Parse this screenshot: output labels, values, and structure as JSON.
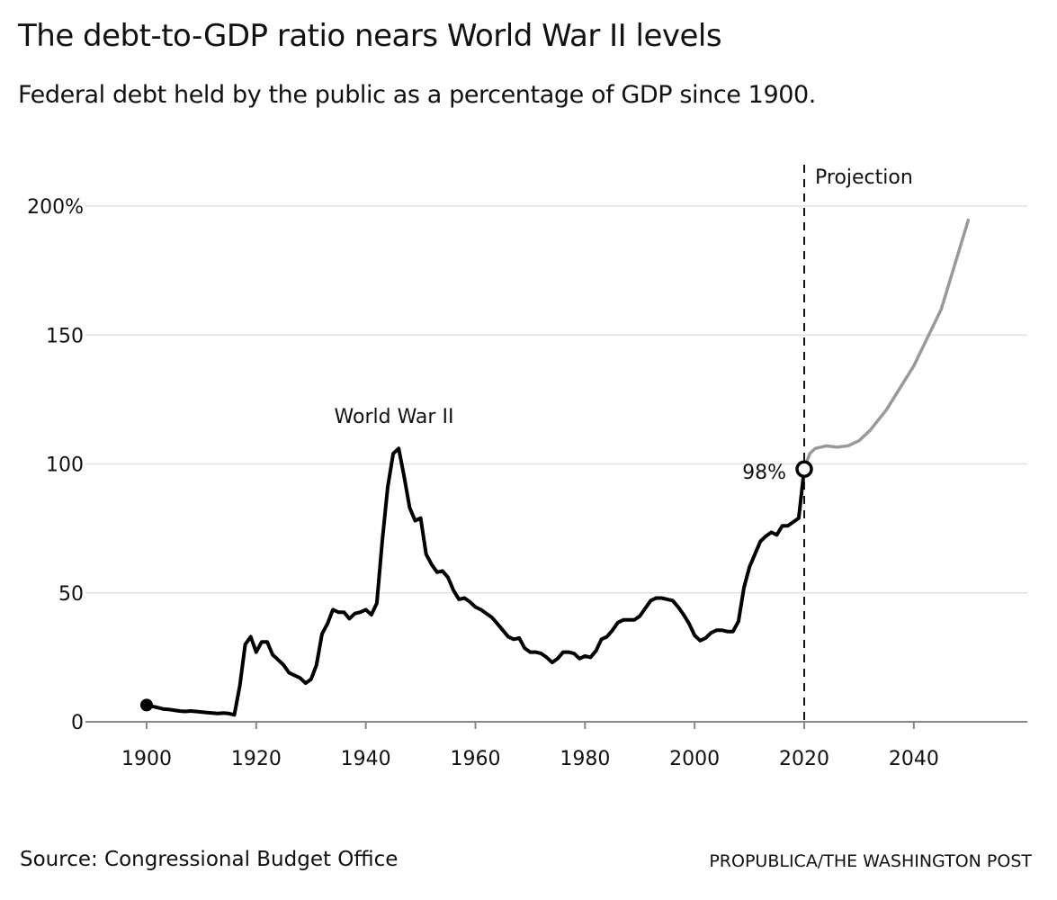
{
  "chart_data": {
    "type": "line",
    "title": "The debt-to-GDP ratio nears World War II levels",
    "subtitle": "Federal debt held by the public as a percentage of GDP since 1900.",
    "xlabel": "",
    "ylabel": "",
    "xlim": [
      1893,
      2055
    ],
    "ylim": [
      0,
      200
    ],
    "grid": true,
    "x_ticks": [
      "1900",
      "1920",
      "1940",
      "1960",
      "1980",
      "2000",
      "2020",
      "2040"
    ],
    "y_ticks": [
      "0",
      "50",
      "100",
      "150",
      "200%"
    ],
    "y_tick_values": [
      0,
      50,
      100,
      150,
      200
    ],
    "x_tick_values": [
      1900,
      1920,
      1940,
      1960,
      1980,
      2000,
      2020,
      2040
    ],
    "series": [
      {
        "role": "historical",
        "color": "#000000",
        "x": [
          1900,
          1901,
          1902,
          1903,
          1904,
          1905,
          1906,
          1907,
          1908,
          1909,
          1910,
          1911,
          1912,
          1913,
          1914,
          1915,
          1916,
          1917,
          1918,
          1919,
          1920,
          1921,
          1922,
          1923,
          1924,
          1925,
          1926,
          1927,
          1928,
          1929,
          1930,
          1931,
          1932,
          1933,
          1934,
          1935,
          1936,
          1937,
          1938,
          1939,
          1940,
          1941,
          1942,
          1943,
          1944,
          1945,
          1946,
          1947,
          1948,
          1949,
          1950,
          1951,
          1952,
          1953,
          1954,
          1955,
          1956,
          1957,
          1958,
          1959,
          1960,
          1961,
          1962,
          1963,
          1964,
          1965,
          1966,
          1967,
          1968,
          1969,
          1970,
          1971,
          1972,
          1973,
          1974,
          1975,
          1976,
          1977,
          1978,
          1979,
          1980,
          1981,
          1982,
          1983,
          1984,
          1985,
          1986,
          1987,
          1988,
          1989,
          1990,
          1991,
          1992,
          1993,
          1994,
          1995,
          1996,
          1997,
          1998,
          1999,
          2000,
          2001,
          2002,
          2003,
          2004,
          2005,
          2006,
          2007,
          2008,
          2009,
          2010,
          2011,
          2012,
          2013,
          2014,
          2015,
          2016,
          2017,
          2018,
          2019,
          2020
        ],
        "y": [
          6.5,
          6,
          5.5,
          5,
          4.8,
          4.5,
          4.2,
          4,
          4.2,
          4,
          3.8,
          3.6,
          3.4,
          3.2,
          3.4,
          3.2,
          2.7,
          14,
          30,
          33,
          27,
          31,
          31,
          26,
          24,
          22,
          19,
          18,
          17,
          15,
          16.5,
          22,
          34,
          38,
          43.5,
          42.5,
          42.5,
          40,
          42,
          42.5,
          43.5,
          41.5,
          46,
          70,
          91,
          104,
          106,
          95,
          83,
          78,
          79,
          65,
          61,
          58,
          58.5,
          56,
          51,
          47.5,
          48,
          46.5,
          44.5,
          43.5,
          42,
          40.5,
          38,
          35.5,
          33,
          32,
          32.5,
          28.5,
          27,
          27,
          26.5,
          25,
          23,
          24.5,
          27,
          27,
          26.5,
          24.5,
          25.5,
          25,
          27.5,
          32,
          33,
          35.5,
          38.5,
          39.5,
          39.5,
          39.5,
          41,
          44,
          47,
          48,
          48,
          47.5,
          47,
          44.5,
          41.5,
          38,
          33.5,
          31.5,
          32.5,
          34.5,
          35.5,
          35.5,
          35,
          35,
          39,
          52,
          60,
          65,
          70,
          72,
          73.5,
          72.5,
          76,
          76,
          77.5,
          79,
          98
        ]
      },
      {
        "role": "projection",
        "color": "#999999",
        "x": [
          2020,
          2021,
          2022,
          2024,
          2026,
          2028,
          2030,
          2032,
          2035,
          2040,
          2045,
          2050
        ],
        "y": [
          98,
          104,
          106,
          107,
          106.5,
          107,
          109,
          113,
          121,
          138,
          160,
          195
        ]
      }
    ],
    "annotations": {
      "ww2": "World War II",
      "current": "98%",
      "projection": "Projection"
    },
    "projection_start": 2020
  },
  "footer": {
    "source": "Source: Congressional Budget Office",
    "credit": "PROPUBLICA/THE WASHINGTON POST"
  }
}
